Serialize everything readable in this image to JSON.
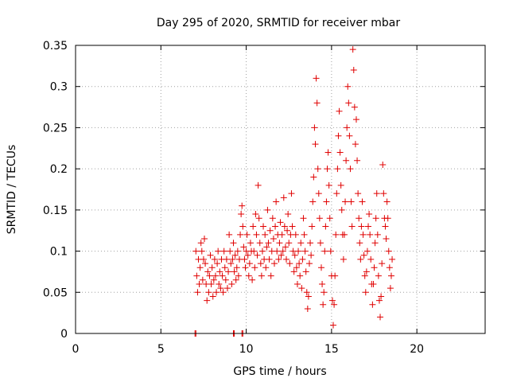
{
  "chart_data": {
    "type": "scatter",
    "title": "Day 295 of 2020, SRMTID for receiver mbar",
    "xlabel": "GPS time / hours",
    "ylabel": "SRMTID / TECUs",
    "xlim": [
      0,
      24
    ],
    "ylim": [
      0,
      0.35
    ],
    "x_ticks": [
      0,
      5,
      10,
      15,
      20
    ],
    "y_ticks": [
      0,
      0.05,
      0.1,
      0.15,
      0.2,
      0.25,
      0.3,
      0.35
    ],
    "x_tick_labels": [
      "0",
      "5",
      "10",
      "15",
      "20"
    ],
    "y_tick_labels": [
      "0",
      "0.05",
      "0.1",
      "0.15",
      "0.2",
      "0.25",
      "0.3",
      "0.35"
    ],
    "grid": true,
    "marker": "+",
    "series_color": "#e00000",
    "series": [
      {
        "name": "SRMTID",
        "points": [
          [
            7.0,
            0.0
          ],
          [
            7.05,
            0.0
          ],
          [
            9.25,
            0.0
          ],
          [
            9.3,
            0.0
          ],
          [
            9.75,
            0.0
          ],
          [
            9.8,
            0.0
          ],
          [
            7.05,
            0.1
          ],
          [
            7.1,
            0.07
          ],
          [
            7.15,
            0.05
          ],
          [
            7.2,
            0.09
          ],
          [
            7.25,
            0.06
          ],
          [
            7.3,
            0.08
          ],
          [
            7.35,
            0.11
          ],
          [
            7.4,
            0.1
          ],
          [
            7.45,
            0.065
          ],
          [
            7.5,
            0.09
          ],
          [
            7.55,
            0.115
          ],
          [
            7.6,
            0.085
          ],
          [
            7.65,
            0.06
          ],
          [
            7.7,
            0.04
          ],
          [
            7.75,
            0.075
          ],
          [
            7.8,
            0.05
          ],
          [
            7.85,
            0.07
          ],
          [
            7.9,
            0.095
          ],
          [
            7.95,
            0.06
          ],
          [
            8.0,
            0.08
          ],
          [
            8.05,
            0.045
          ],
          [
            8.1,
            0.065
          ],
          [
            8.15,
            0.09
          ],
          [
            8.2,
            0.07
          ],
          [
            8.25,
            0.05
          ],
          [
            8.3,
            0.085
          ],
          [
            8.35,
            0.1
          ],
          [
            8.4,
            0.06
          ],
          [
            8.45,
            0.075
          ],
          [
            8.5,
            0.055
          ],
          [
            8.55,
            0.09
          ],
          [
            8.6,
            0.07
          ],
          [
            8.65,
            0.05
          ],
          [
            8.7,
            0.1
          ],
          [
            8.75,
            0.08
          ],
          [
            8.8,
            0.065
          ],
          [
            8.85,
            0.09
          ],
          [
            8.9,
            0.055
          ],
          [
            8.95,
            0.075
          ],
          [
            9.0,
            0.12
          ],
          [
            9.05,
            0.1
          ],
          [
            9.1,
            0.085
          ],
          [
            9.15,
            0.06
          ],
          [
            9.2,
            0.09
          ],
          [
            9.25,
            0.11
          ],
          [
            9.3,
            0.075
          ],
          [
            9.35,
            0.095
          ],
          [
            9.4,
            0.065
          ],
          [
            9.45,
            0.08
          ],
          [
            9.5,
            0.1
          ],
          [
            9.55,
            0.07
          ],
          [
            9.6,
            0.09
          ],
          [
            9.65,
            0.12
          ],
          [
            9.7,
            0.145
          ],
          [
            9.75,
            0.155
          ],
          [
            9.8,
            0.13
          ],
          [
            9.85,
            0.105
          ],
          [
            9.9,
            0.09
          ],
          [
            9.95,
            0.08
          ],
          [
            10.0,
            0.1
          ],
          [
            10.05,
            0.12
          ],
          [
            10.1,
            0.095
          ],
          [
            10.15,
            0.07
          ],
          [
            10.2,
            0.085
          ],
          [
            10.25,
            0.11
          ],
          [
            10.3,
            0.1
          ],
          [
            10.35,
            0.065
          ],
          [
            10.4,
            0.13
          ],
          [
            10.45,
            0.1
          ],
          [
            10.5,
            0.08
          ],
          [
            10.55,
            0.145
          ],
          [
            10.6,
            0.12
          ],
          [
            10.65,
            0.095
          ],
          [
            10.7,
            0.18
          ],
          [
            10.75,
            0.14
          ],
          [
            10.8,
            0.11
          ],
          [
            10.85,
            0.085
          ],
          [
            10.9,
            0.07
          ],
          [
            10.95,
            0.1
          ],
          [
            11.0,
            0.13
          ],
          [
            11.05,
            0.09
          ],
          [
            11.1,
            0.12
          ],
          [
            11.15,
            0.08
          ],
          [
            11.2,
            0.105
          ],
          [
            11.25,
            0.15
          ],
          [
            11.3,
            0.11
          ],
          [
            11.35,
            0.09
          ],
          [
            11.4,
            0.125
          ],
          [
            11.45,
            0.07
          ],
          [
            11.5,
            0.1
          ],
          [
            11.55,
            0.14
          ],
          [
            11.6,
            0.115
          ],
          [
            11.65,
            0.085
          ],
          [
            11.7,
            0.13
          ],
          [
            11.75,
            0.16
          ],
          [
            11.8,
            0.1
          ],
          [
            11.85,
            0.12
          ],
          [
            11.9,
            0.09
          ],
          [
            11.95,
            0.11
          ],
          [
            12.0,
            0.135
          ],
          [
            12.05,
            0.095
          ],
          [
            12.1,
            0.12
          ],
          [
            12.15,
            0.1
          ],
          [
            12.2,
            0.165
          ],
          [
            12.25,
            0.13
          ],
          [
            12.3,
            0.105
          ],
          [
            12.35,
            0.09
          ],
          [
            12.4,
            0.125
          ],
          [
            12.45,
            0.145
          ],
          [
            12.5,
            0.11
          ],
          [
            12.55,
            0.085
          ],
          [
            12.6,
            0.12
          ],
          [
            12.65,
            0.17
          ],
          [
            12.7,
            0.13
          ],
          [
            12.75,
            0.1
          ],
          [
            12.8,
            0.075
          ],
          [
            12.85,
            0.095
          ],
          [
            12.9,
            0.12
          ],
          [
            12.95,
            0.08
          ],
          [
            13.0,
            0.06
          ],
          [
            13.05,
            0.1
          ],
          [
            13.1,
            0.085
          ],
          [
            13.15,
            0.07
          ],
          [
            13.2,
            0.11
          ],
          [
            13.25,
            0.055
          ],
          [
            13.3,
            0.09
          ],
          [
            13.35,
            0.14
          ],
          [
            13.4,
            0.12
          ],
          [
            13.45,
            0.1
          ],
          [
            13.5,
            0.075
          ],
          [
            13.55,
            0.05
          ],
          [
            13.6,
            0.03
          ],
          [
            13.65,
            0.045
          ],
          [
            13.7,
            0.085
          ],
          [
            13.75,
            0.11
          ],
          [
            13.8,
            0.095
          ],
          [
            13.85,
            0.13
          ],
          [
            13.9,
            0.16
          ],
          [
            13.95,
            0.19
          ],
          [
            14.0,
            0.25
          ],
          [
            14.05,
            0.23
          ],
          [
            14.1,
            0.31
          ],
          [
            14.15,
            0.28
          ],
          [
            14.2,
            0.2
          ],
          [
            14.25,
            0.17
          ],
          [
            14.3,
            0.14
          ],
          [
            14.35,
            0.11
          ],
          [
            14.4,
            0.08
          ],
          [
            14.45,
            0.06
          ],
          [
            14.5,
            0.035
          ],
          [
            14.55,
            0.05
          ],
          [
            14.6,
            0.1
          ],
          [
            14.65,
            0.13
          ],
          [
            14.7,
            0.16
          ],
          [
            14.75,
            0.2
          ],
          [
            14.8,
            0.22
          ],
          [
            14.85,
            0.18
          ],
          [
            14.9,
            0.14
          ],
          [
            14.95,
            0.1
          ],
          [
            15.0,
            0.07
          ],
          [
            15.05,
            0.04
          ],
          [
            15.1,
            0.01
          ],
          [
            15.15,
            0.035
          ],
          [
            15.2,
            0.07
          ],
          [
            15.25,
            0.12
          ],
          [
            15.3,
            0.17
          ],
          [
            15.35,
            0.2
          ],
          [
            15.4,
            0.24
          ],
          [
            15.45,
            0.27
          ],
          [
            15.5,
            0.22
          ],
          [
            15.55,
            0.18
          ],
          [
            15.6,
            0.15
          ],
          [
            15.65,
            0.12
          ],
          [
            15.7,
            0.09
          ],
          [
            15.75,
            0.12
          ],
          [
            15.8,
            0.16
          ],
          [
            15.85,
            0.21
          ],
          [
            15.9,
            0.25
          ],
          [
            15.95,
            0.3
          ],
          [
            16.0,
            0.28
          ],
          [
            16.05,
            0.24
          ],
          [
            16.1,
            0.2
          ],
          [
            16.15,
            0.16
          ],
          [
            16.2,
            0.13
          ],
          [
            16.25,
            0.345
          ],
          [
            16.3,
            0.32
          ],
          [
            16.35,
            0.275
          ],
          [
            16.4,
            0.23
          ],
          [
            16.45,
            0.26
          ],
          [
            16.5,
            0.21
          ],
          [
            16.55,
            0.17
          ],
          [
            16.6,
            0.14
          ],
          [
            16.65,
            0.11
          ],
          [
            16.7,
            0.09
          ],
          [
            16.75,
            0.13
          ],
          [
            16.8,
            0.16
          ],
          [
            16.85,
            0.12
          ],
          [
            16.9,
            0.095
          ],
          [
            16.95,
            0.07
          ],
          [
            17.0,
            0.05
          ],
          [
            17.05,
            0.075
          ],
          [
            17.1,
            0.1
          ],
          [
            17.15,
            0.13
          ],
          [
            17.2,
            0.145
          ],
          [
            17.25,
            0.12
          ],
          [
            17.3,
            0.09
          ],
          [
            17.35,
            0.06
          ],
          [
            17.4,
            0.035
          ],
          [
            17.45,
            0.06
          ],
          [
            17.5,
            0.08
          ],
          [
            17.55,
            0.11
          ],
          [
            17.6,
            0.14
          ],
          [
            17.65,
            0.17
          ],
          [
            17.7,
            0.12
          ],
          [
            17.75,
            0.07
          ],
          [
            17.8,
            0.04
          ],
          [
            17.85,
            0.02
          ],
          [
            17.9,
            0.045
          ],
          [
            17.95,
            0.085
          ],
          [
            18.0,
            0.205
          ],
          [
            18.05,
            0.17
          ],
          [
            18.1,
            0.14
          ],
          [
            18.15,
            0.13
          ],
          [
            18.2,
            0.115
          ],
          [
            18.25,
            0.16
          ],
          [
            18.3,
            0.14
          ],
          [
            18.35,
            0.1
          ],
          [
            18.4,
            0.08
          ],
          [
            18.45,
            0.055
          ],
          [
            18.5,
            0.07
          ],
          [
            18.55,
            0.09
          ]
        ]
      }
    ]
  }
}
